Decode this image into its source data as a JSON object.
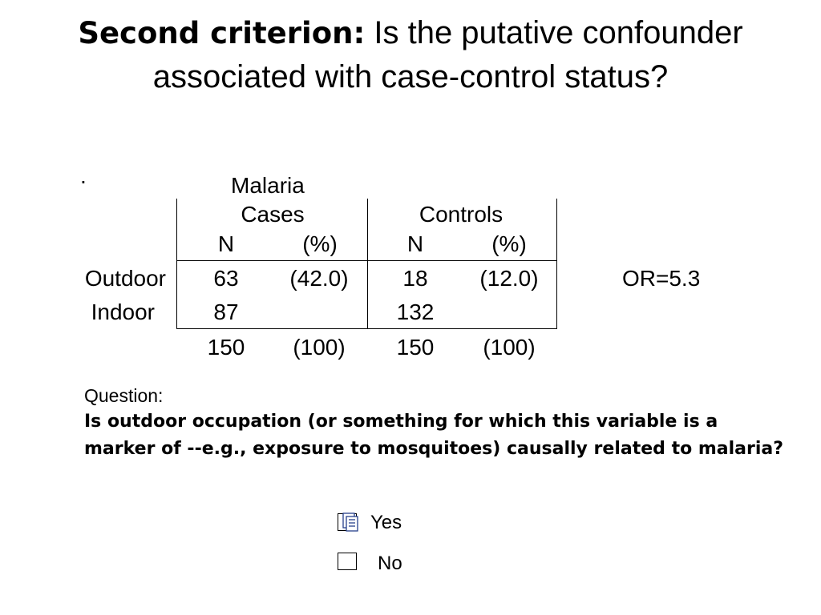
{
  "title": {
    "lead": "Second criterion:",
    "rest": " Is the putative confounder associated with case-control status?"
  },
  "dot": ".",
  "table": {
    "group_header": "Malaria",
    "groups": [
      "Cases",
      "Controls"
    ],
    "subheaders": [
      "N",
      "(%)",
      "N",
      "(%)"
    ],
    "rows": [
      {
        "label": "Outdoor",
        "cells": [
          "63",
          "(42.0)",
          "18",
          "(12.0)"
        ]
      },
      {
        "label": "Indoor",
        "cells": [
          "87",
          "",
          "132",
          ""
        ]
      }
    ],
    "totals": [
      "150",
      "(100)",
      "150",
      "(100)"
    ],
    "odds_ratio": "OR=5.3"
  },
  "question": {
    "label": "Question:",
    "text": "Is outdoor occupation (or something for which this variable is a marker of --e.g., exposure to mosquitoes) causally related to malaria?"
  },
  "options": [
    {
      "label": "Yes",
      "checked": true
    },
    {
      "label": "No",
      "checked": false
    }
  ]
}
